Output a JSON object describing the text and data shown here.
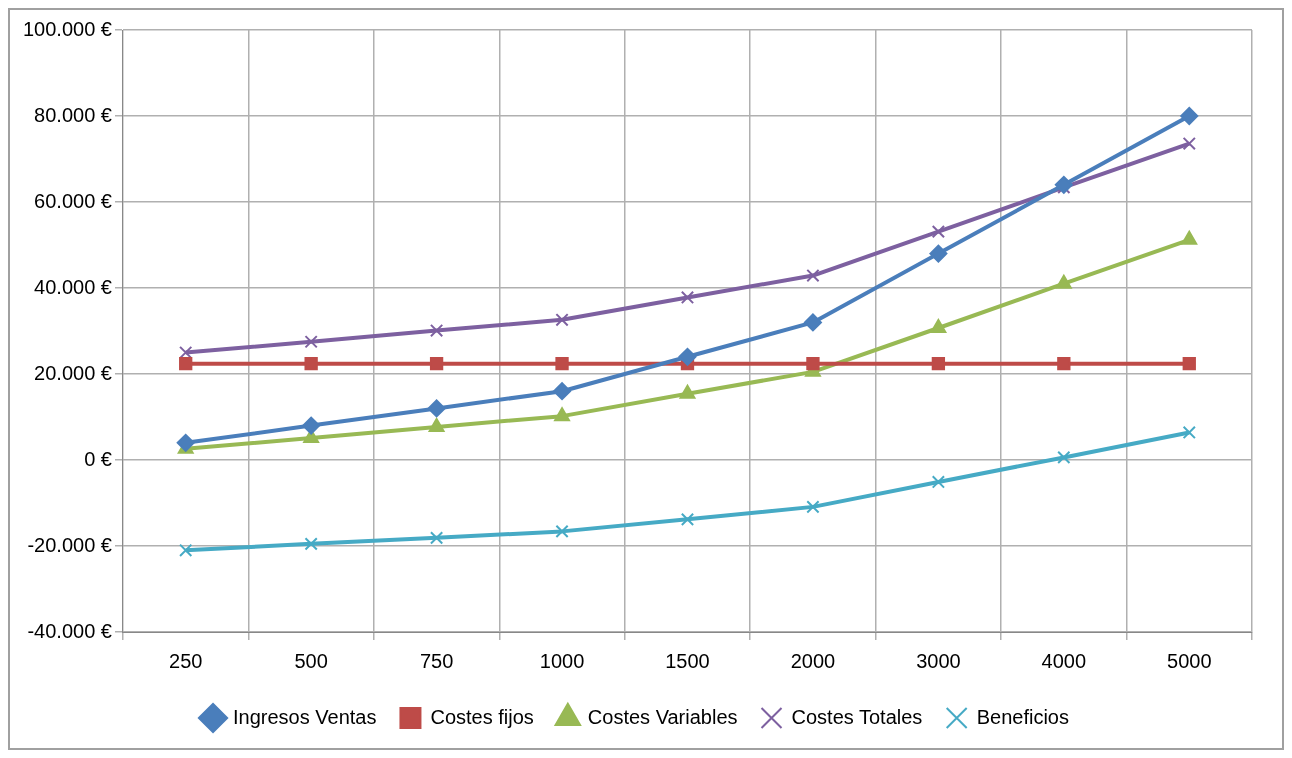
{
  "chart_data": {
    "type": "line",
    "categories": [
      "250",
      "500",
      "750",
      "1000",
      "1500",
      "2000",
      "3000",
      "4000",
      "5000"
    ],
    "series": [
      {
        "name": "Ingresos Ventas",
        "color": "#4a7ebb",
        "marker": "diamond",
        "values": [
          4000,
          8000,
          12000,
          16000,
          24000,
          32000,
          48000,
          64000,
          80000
        ]
      },
      {
        "name": "Costes fijos",
        "color": "#be4b48",
        "marker": "square",
        "values": [
          22400,
          22400,
          22400,
          22400,
          22400,
          22400,
          22400,
          22400,
          22400
        ]
      },
      {
        "name": "Costes Variables",
        "color": "#98b954",
        "marker": "triangle",
        "values": [
          2600,
          5100,
          7700,
          10200,
          15400,
          20500,
          30700,
          41000,
          51200
        ]
      },
      {
        "name": "Costes Totales",
        "color": "#7d60a0",
        "marker": "cross",
        "values": [
          25000,
          27500,
          30100,
          32600,
          37800,
          42900,
          53100,
          63400,
          73600
        ]
      },
      {
        "name": "Beneficios",
        "color": "#46aac5",
        "marker": "cross",
        "values": [
          -21000,
          -19500,
          -18100,
          -16600,
          -13800,
          -10900,
          -5100,
          600,
          6400
        ]
      }
    ],
    "ylim": [
      -40000,
      100000
    ],
    "yticks": [
      {
        "value": -40000,
        "label": "-40.000 €"
      },
      {
        "value": -20000,
        "label": "-20.000 €"
      },
      {
        "value": 0,
        "label": "0 €"
      },
      {
        "value": 20000,
        "label": "20.000 €"
      },
      {
        "value": 40000,
        "label": "40.000 €"
      },
      {
        "value": 60000,
        "label": "60.000 €"
      },
      {
        "value": 80000,
        "label": "80.000 €"
      },
      {
        "value": 100000,
        "label": "100.000 €"
      }
    ],
    "grid": true,
    "legend": "bottom"
  }
}
